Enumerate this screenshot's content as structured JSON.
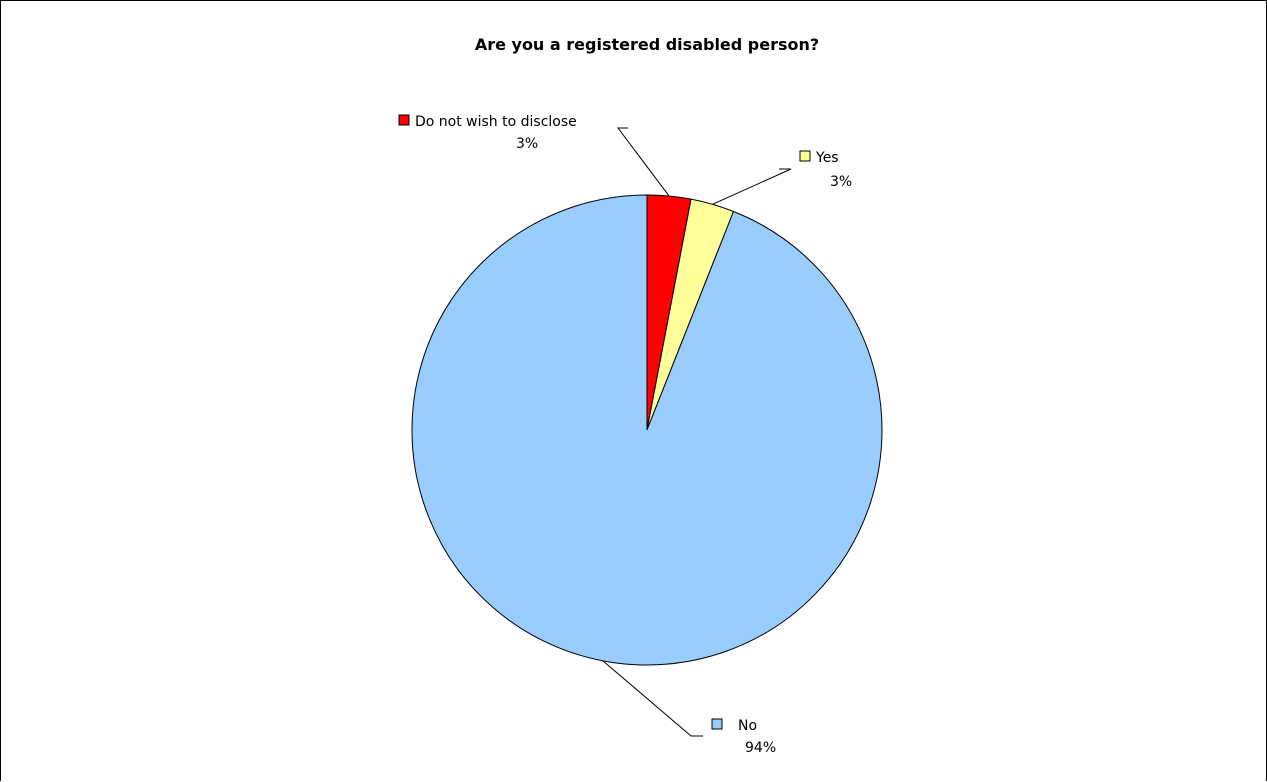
{
  "chart_data": {
    "type": "pie",
    "title": "Are you a registered disabled person?",
    "start_angle_deg": 0,
    "direction": "clockwise",
    "slices": [
      {
        "name": "Do not wish to disclose",
        "value": 3,
        "label": "3%",
        "color": "#FF0000"
      },
      {
        "name": "Yes",
        "value": 3,
        "label": "3%",
        "color": "#FFFF99"
      },
      {
        "name": "No",
        "value": 94,
        "label": "94%",
        "color": "#99CCFF"
      }
    ],
    "legend": "none",
    "data_labels": "category name and percentage with legend key and leader lines"
  }
}
